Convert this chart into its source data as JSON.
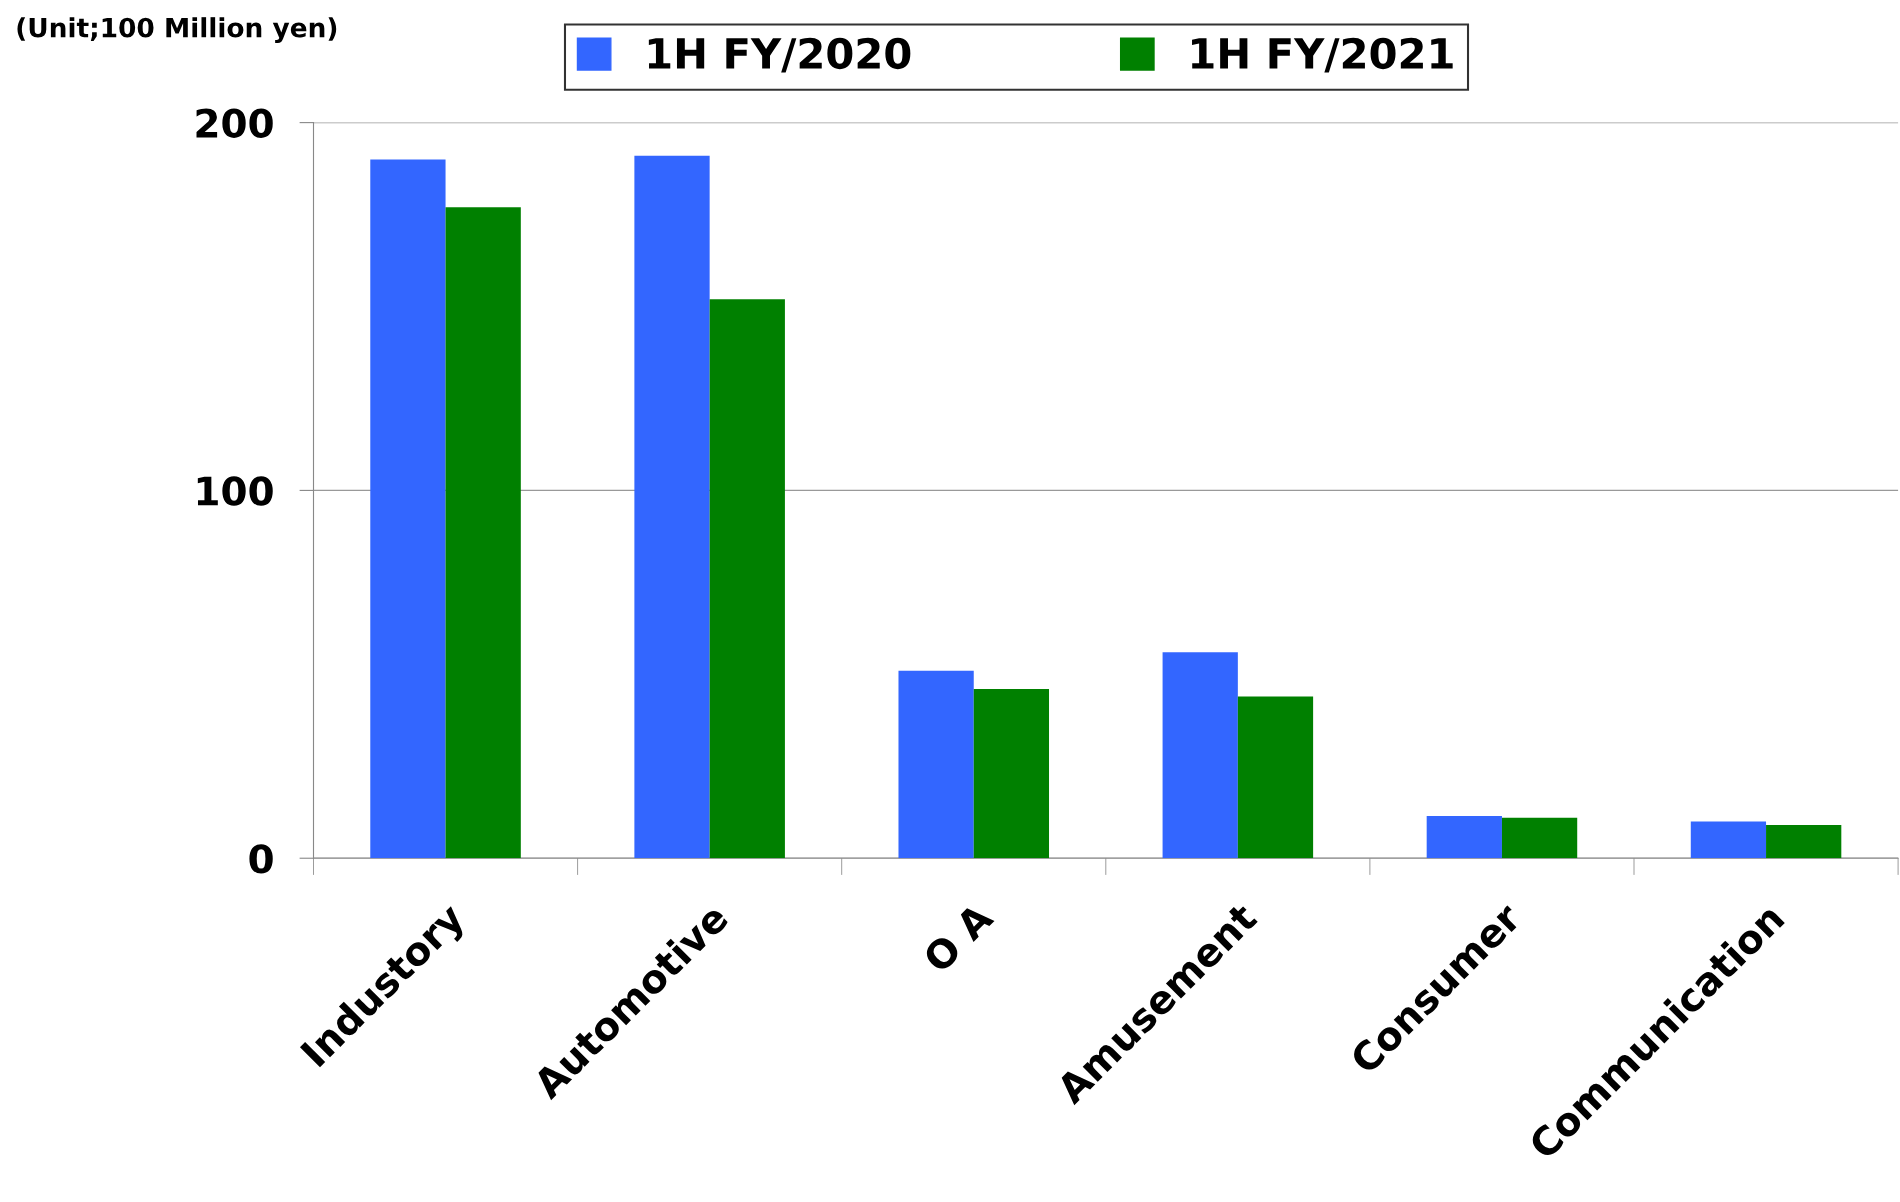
{
  "chart_data": {
    "type": "bar",
    "categories": [
      "Industory",
      "Automotive",
      "O A",
      "Amusement",
      "Consumer",
      "Communication"
    ],
    "series": [
      {
        "name": "1H FY/2020",
        "color": "#3366ff",
        "values": [
          190,
          191,
          51,
          56,
          11.5,
          10
        ]
      },
      {
        "name": "1H FY/2021",
        "color": "#008000",
        "values": [
          177,
          152,
          46,
          44,
          11,
          9
        ]
      }
    ],
    "ylim": [
      0,
      200
    ],
    "yticks": [
      0,
      100,
      200
    ],
    "grid": "y",
    "legend": "top",
    "annotations": [
      "(Unit;100 Million yen)"
    ]
  }
}
